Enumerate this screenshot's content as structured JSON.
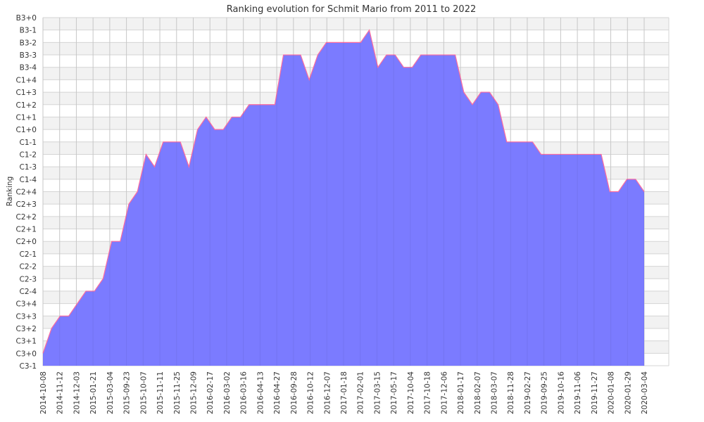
{
  "chart_data": {
    "type": "area",
    "title": "Ranking evolution for Schmit Mario from 2011 to 2022",
    "xlabel": "",
    "ylabel": "Ranking",
    "grid": true,
    "y_levels": [
      "C3-1",
      "C3+0",
      "C3+1",
      "C3+2",
      "C3+3",
      "C3+4",
      "C2-4",
      "C2-3",
      "C2-2",
      "C2-1",
      "C2+0",
      "C2+1",
      "C2+2",
      "C2+3",
      "C2+4",
      "C1-4",
      "C1-3",
      "C1-2",
      "C1-1",
      "C1+0",
      "C1+1",
      "C1+2",
      "C1+3",
      "C1+4",
      "B3-4",
      "B3-3",
      "B3-2",
      "B3-1",
      "B3+0"
    ],
    "x_tick_labels": [
      "2014-10-08",
      "2014-11-12",
      "2014-12-03",
      "2015-01-21",
      "2015-03-04",
      "2015-09-23",
      "2015-10-07",
      "2015-11-11",
      "2015-11-25",
      "2015-12-09",
      "2016-02-17",
      "2016-03-02",
      "2016-03-16",
      "2016-04-13",
      "2016-04-27",
      "2016-09-28",
      "2016-10-12",
      "2016-12-07",
      "2017-01-18",
      "2017-02-01",
      "2017-03-15",
      "2017-05-17",
      "2017-10-04",
      "2017-10-18",
      "2017-12-06",
      "2018-01-17",
      "2018-02-07",
      "2018-03-07",
      "2018-11-28",
      "2019-02-27",
      "2019-09-25",
      "2019-10-16",
      "2019-11-06",
      "2019-11-27",
      "2020-01-08",
      "2020-01-29",
      "2020-03-04"
    ],
    "series": [
      {
        "values": [
          "C3+0",
          "C3+2",
          "C3+3",
          "C3+3",
          "C3+4",
          "C2-4",
          "C2-4",
          "C2-3",
          "C2+0",
          "C2+0",
          "C2+3",
          "C2+4",
          "C1-2",
          "C1-3",
          "C1-1",
          "C1-1",
          "C1-1",
          "C1-3",
          "C1+0",
          "C1+1",
          "C1+0",
          "C1+0",
          "C1+1",
          "C1+1",
          "C1+2",
          "C1+2",
          "C1+2",
          "C1+2",
          "B3-3",
          "B3-3",
          "B3-3",
          "C1+4",
          "B3-3",
          "B3-2",
          "B3-2",
          "B3-2",
          "B3-2",
          "B3-2",
          "B3-1",
          "B3-4",
          "B3-3",
          "B3-3",
          "B3-4",
          "B3-4",
          "B3-3",
          "B3-3",
          "B3-3",
          "B3-3",
          "B3-3",
          "C1+3",
          "C1+2",
          "C1+3",
          "C1+3",
          "C1+2",
          "C1-1",
          "C1-1",
          "C1-1",
          "C1-1",
          "C1-2",
          "C1-2",
          "C1-2",
          "C1-2",
          "C1-2",
          "C1-2",
          "C1-2",
          "C1-2",
          "C2+4",
          "C2+4",
          "C1-4",
          "C1-4",
          "C2+4"
        ]
      }
    ],
    "colors": {
      "fill": "#7b7bff",
      "line": "#ff6b9d",
      "grid": "#d4d4d4",
      "band": "#f2f2f2"
    }
  }
}
